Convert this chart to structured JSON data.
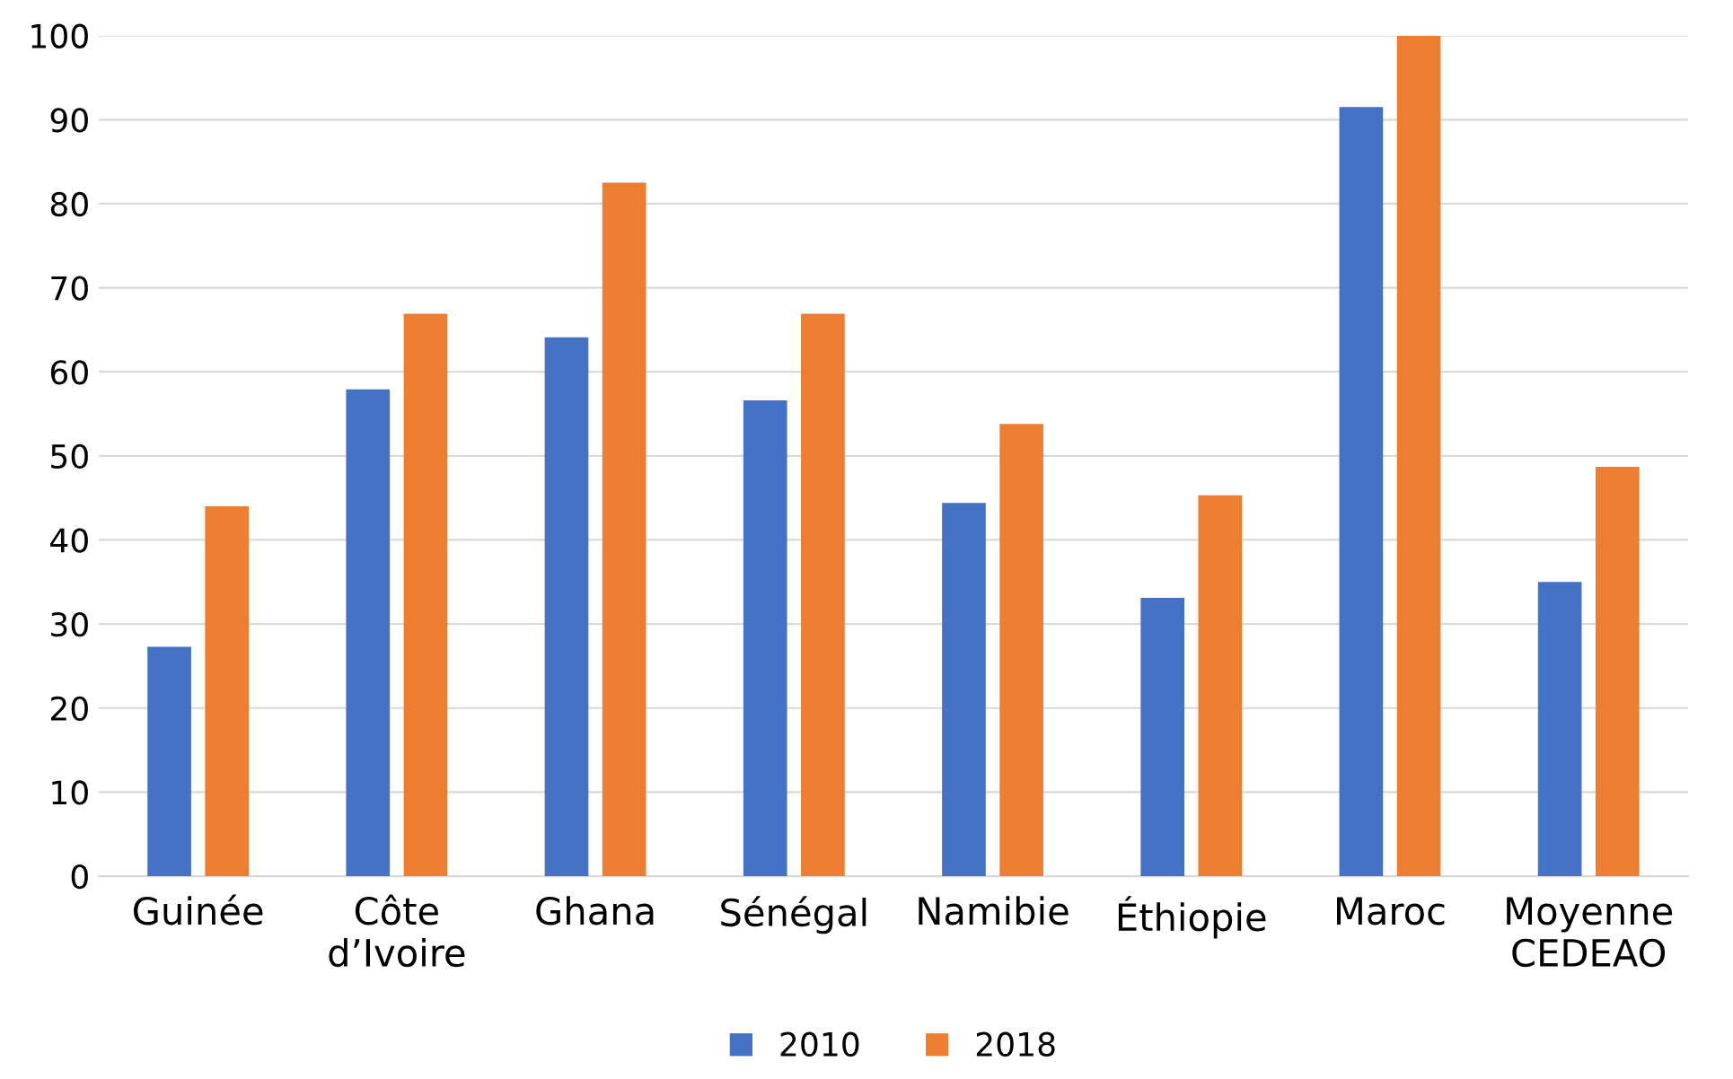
{
  "chart_data": {
    "type": "bar",
    "categories": [
      "Guinée",
      "Côte\nd’Ivoire",
      "Ghana",
      "Sénégal",
      "Namibie",
      "Éthiopie",
      "Maroc",
      "Moyenne\nCEDEAO"
    ],
    "series": [
      {
        "name": "2010",
        "color": "#4472c4",
        "values": [
          27.3,
          57.9,
          64.1,
          56.6,
          44.4,
          33.1,
          91.5,
          35.0
        ]
      },
      {
        "name": "2018",
        "color": "#ed7d31",
        "values": [
          44.0,
          66.9,
          82.5,
          66.9,
          53.8,
          45.3,
          100,
          48.7
        ]
      }
    ],
    "ylim": [
      0,
      100
    ],
    "yticks": [
      0,
      10,
      20,
      30,
      40,
      50,
      60,
      70,
      80,
      90,
      100
    ],
    "grid": "y",
    "legend": "bottom"
  }
}
